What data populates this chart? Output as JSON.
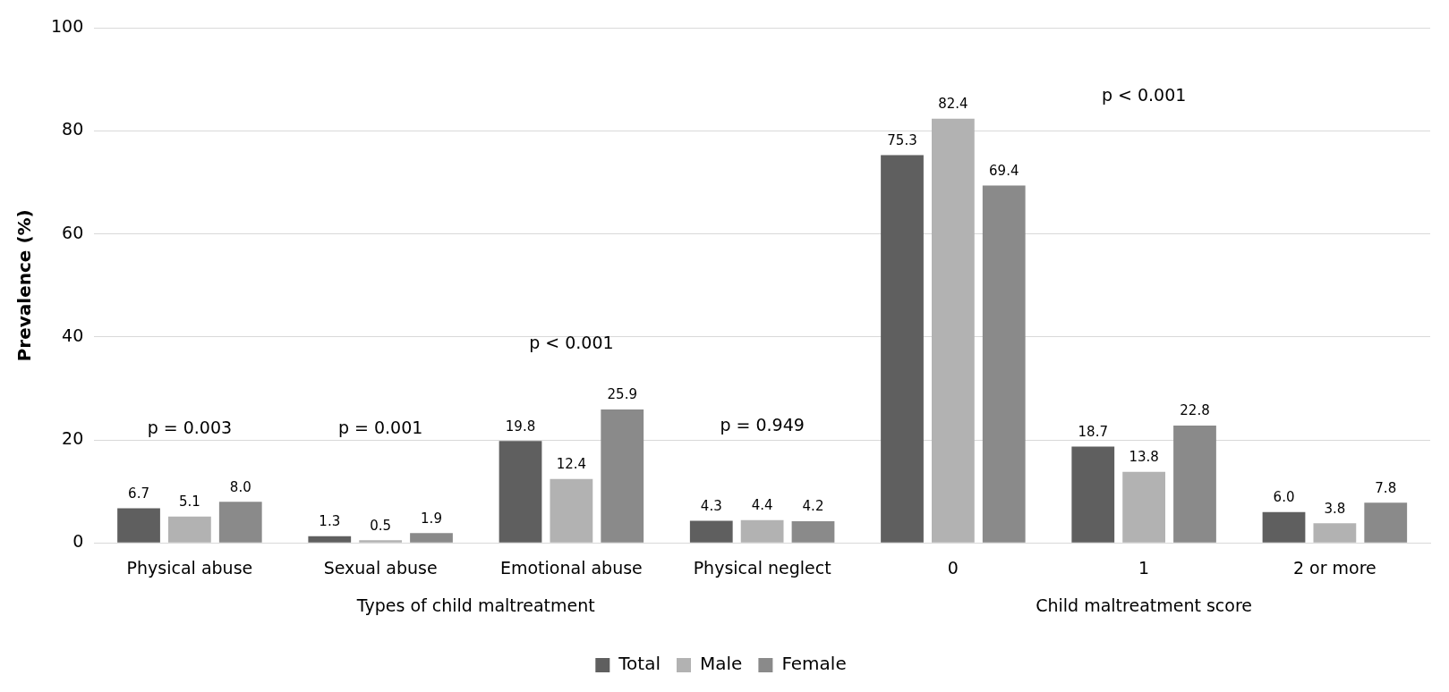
{
  "chart_data": {
    "type": "bar",
    "ylabel": "Prevalence (%)",
    "categories": [
      "Physical abuse",
      "Sexual abuse",
      "Emotional abuse",
      "Physical neglect",
      "0",
      "1",
      "2 or more"
    ],
    "series": [
      {
        "name": "Total",
        "color": "#5f5f5f",
        "values": [
          6.7,
          1.3,
          19.8,
          4.3,
          75.3,
          18.7,
          6.0
        ],
        "value_labels": [
          "6.7",
          "1.3",
          "19.8",
          "4.3",
          "75.3",
          "18.7",
          "6.0"
        ]
      },
      {
        "name": "Male",
        "color": "#b2b2b2",
        "values": [
          5.1,
          0.5,
          12.4,
          4.4,
          82.4,
          13.8,
          3.8
        ],
        "value_labels": [
          "5.1",
          "0.5",
          "12.4",
          "4.4",
          "82.4",
          "13.8",
          "3.8"
        ]
      },
      {
        "name": "Female",
        "color": "#8a8a8a",
        "values": [
          8.0,
          1.9,
          25.9,
          4.2,
          69.4,
          22.8,
          7.8
        ],
        "value_labels": [
          "8.0",
          "1.9",
          "25.9",
          "4.2",
          "69.4",
          "22.8",
          "7.8"
        ]
      }
    ],
    "ylim": [
      0,
      100
    ],
    "yticks": [
      0,
      20,
      40,
      60,
      80,
      100
    ],
    "grid": "y",
    "legend": "bottom",
    "annotations": [
      "p = 0.003",
      "p = 0.001",
      "p < 0.001",
      "p = 0.949",
      "p < 0.001",
      "Types of child maltreatment",
      "Child maltreatment score"
    ]
  }
}
